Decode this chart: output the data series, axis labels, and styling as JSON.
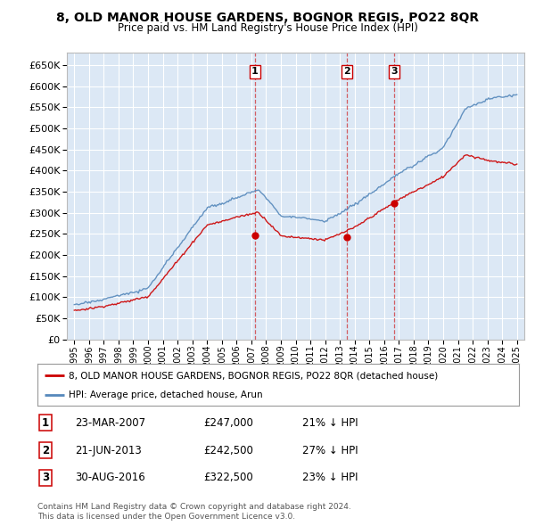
{
  "title": "8, OLD MANOR HOUSE GARDENS, BOGNOR REGIS, PO22 8QR",
  "subtitle": "Price paid vs. HM Land Registry's House Price Index (HPI)",
  "legend_line1": "8, OLD MANOR HOUSE GARDENS, BOGNOR REGIS, PO22 8QR (detached house)",
  "legend_line2": "HPI: Average price, detached house, Arun",
  "footer1": "Contains HM Land Registry data © Crown copyright and database right 2024.",
  "footer2": "This data is licensed under the Open Government Licence v3.0.",
  "transactions": [
    {
      "num": 1,
      "date": "23-MAR-2007",
      "price": "£247,000",
      "pct": "21%",
      "dir": "↓",
      "year": 2007.23
    },
    {
      "num": 2,
      "date": "21-JUN-2013",
      "price": "£242,500",
      "pct": "27%",
      "dir": "↓",
      "year": 2013.48
    },
    {
      "num": 3,
      "date": "30-AUG-2016",
      "price": "£322,500",
      "pct": "23%",
      "dir": "↓",
      "year": 2016.67
    }
  ],
  "transaction_dots": [
    {
      "year": 2007.23,
      "value": 247000
    },
    {
      "year": 2013.48,
      "value": 242500
    },
    {
      "year": 2016.67,
      "value": 322500
    }
  ],
  "ylim": [
    0,
    680000
  ],
  "xlim": [
    1994.5,
    2025.5
  ],
  "yticks": [
    0,
    50000,
    100000,
    150000,
    200000,
    250000,
    300000,
    350000,
    400000,
    450000,
    500000,
    550000,
    600000,
    650000
  ],
  "background_color": "#dce8f5",
  "red_color": "#cc0000",
  "blue_color": "#5588bb",
  "grid_color": "#ffffff"
}
